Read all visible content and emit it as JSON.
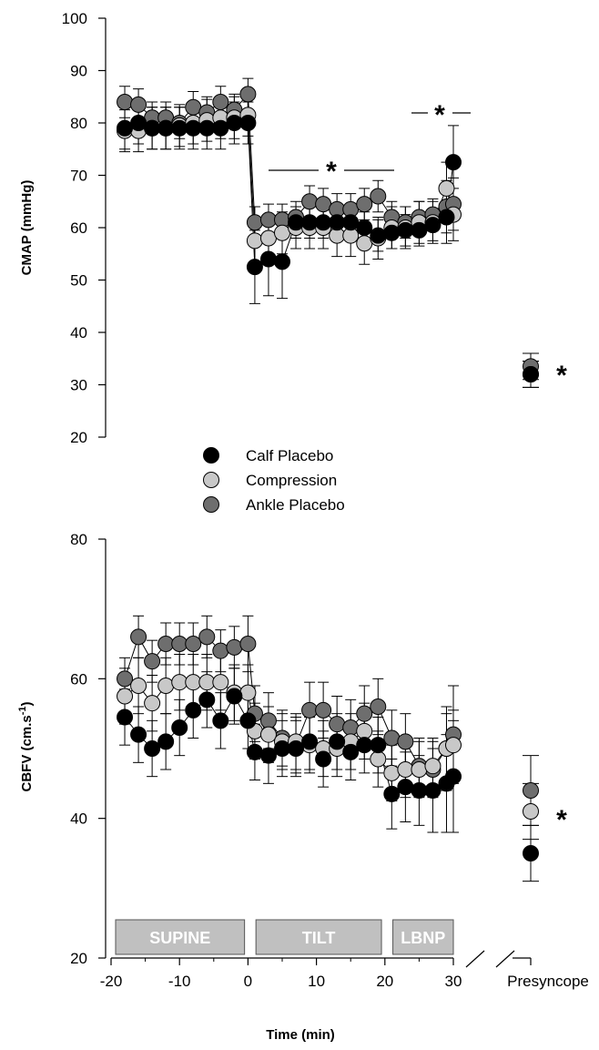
{
  "colors": {
    "calf_placebo": "#000000",
    "compression": "#c8c8c8",
    "ankle_placebo": "#6e6e6e",
    "phase_box": "#c0c0c0"
  },
  "legend": {
    "items": [
      {
        "label": "Calf Placebo",
        "color": "#000000"
      },
      {
        "label": "Compression",
        "color": "#c8c8c8"
      },
      {
        "label": "Ankle Placebo",
        "color": "#6e6e6e"
      }
    ]
  },
  "phases": [
    {
      "label": "SUPINE",
      "start": -20,
      "end": -0.5
    },
    {
      "label": "TILT",
      "start": 0.5,
      "end": 19.5
    },
    {
      "label": "LBNP",
      "start": 20.5,
      "end": 30
    }
  ],
  "x_axis": {
    "label": "Time (min)",
    "ticks": [
      "-20",
      "-10",
      "0",
      "10",
      "20",
      "30"
    ],
    "presyncope_label": "Presyncope"
  },
  "chart_data": [
    {
      "type": "scatter",
      "ylabel": "CMAP (mmHg)",
      "ylim": [
        20,
        100
      ],
      "yticks": [
        "20",
        "30",
        "40",
        "50",
        "60",
        "70",
        "80",
        "90",
        "100"
      ],
      "x": [
        -18,
        -16,
        -14,
        -12,
        -10,
        -8,
        -6,
        -4,
        -2,
        0,
        1,
        3,
        5,
        7,
        9,
        11,
        13,
        15,
        17,
        19,
        21,
        23,
        25,
        27,
        29,
        30
      ],
      "annotations": [
        "*",
        "*",
        "*"
      ],
      "series": [
        {
          "name": "Calf Placebo",
          "color": "#000000",
          "values": [
            79,
            80,
            79,
            79,
            79,
            79,
            79,
            79,
            80,
            80,
            52.5,
            54,
            53.5,
            61,
            61,
            61,
            61,
            61,
            60,
            58.5,
            59,
            59.5,
            59.5,
            60.5,
            62,
            72.5
          ],
          "errors": [
            4,
            4,
            4,
            4,
            4,
            4,
            4,
            4,
            4,
            4,
            7,
            7,
            7,
            3,
            3,
            3,
            3,
            3,
            3,
            3,
            3,
            3,
            3,
            3,
            5,
            7
          ],
          "presyncope": {
            "value": 32,
            "error": 2.5
          }
        },
        {
          "name": "Compression",
          "color": "#c8c8c8",
          "values": [
            78.5,
            78.5,
            79,
            79,
            79.5,
            80,
            80.5,
            81,
            81,
            81.5,
            57.5,
            58,
            59,
            60,
            60,
            60,
            58.5,
            58.5,
            57,
            58,
            60,
            60,
            61,
            61,
            67.5,
            62.5
          ],
          "errors": [
            4,
            4,
            4,
            4,
            4,
            4,
            4,
            4,
            4,
            4,
            4,
            4,
            4,
            4,
            4,
            4,
            4,
            4,
            4,
            4,
            4,
            4,
            4,
            4,
            5,
            5
          ],
          "presyncope": {
            "value": 32,
            "error": 2.5
          }
        },
        {
          "name": "Ankle Placebo",
          "color": "#6e6e6e",
          "values": [
            84,
            83.5,
            81,
            81,
            80,
            83,
            82,
            84,
            82.5,
            85.5,
            61,
            61.5,
            61.5,
            62,
            65,
            64.5,
            63.5,
            63.5,
            64.5,
            66,
            62,
            61,
            62,
            62.5,
            64,
            64.5
          ],
          "errors": [
            3,
            3,
            3,
            3,
            3,
            3,
            3,
            3,
            3,
            3,
            3,
            3,
            3,
            3,
            3,
            3,
            3,
            3,
            3,
            3,
            3,
            3,
            3,
            3,
            5,
            5
          ],
          "presyncope": {
            "value": 33.5,
            "error": 2.5
          }
        }
      ]
    },
    {
      "type": "scatter",
      "ylabel": "CBFV (cm.s-1)",
      "ylim": [
        20,
        80
      ],
      "yticks": [
        "20",
        "40",
        "60",
        "80"
      ],
      "x": [
        -18,
        -16,
        -14,
        -12,
        -10,
        -8,
        -6,
        -4,
        -2,
        0,
        1,
        3,
        5,
        7,
        9,
        11,
        13,
        15,
        17,
        19,
        21,
        23,
        25,
        27,
        29,
        30
      ],
      "annotations": [
        "*"
      ],
      "series": [
        {
          "name": "Calf Placebo",
          "color": "#000000",
          "values": [
            54.5,
            52,
            50,
            51,
            53,
            55.5,
            57,
            54,
            57.5,
            54,
            49.5,
            49,
            50,
            50,
            51,
            48.5,
            51,
            49.5,
            50.5,
            50.5,
            43.5,
            44.5,
            44,
            44,
            45,
            46
          ],
          "errors": [
            4,
            4,
            4,
            4,
            4,
            4,
            4,
            4,
            4,
            4,
            4,
            4,
            4,
            4,
            4,
            4,
            4,
            4,
            4,
            4,
            5,
            5,
            5,
            6,
            7,
            8
          ],
          "presyncope": {
            "value": 35,
            "error": 4
          }
        },
        {
          "name": "Compression",
          "color": "#c8c8c8",
          "values": [
            57.5,
            59,
            56.5,
            59,
            59.5,
            59.5,
            59.5,
            59.5,
            58,
            58,
            52.5,
            52,
            51,
            51,
            50.5,
            50,
            50,
            51,
            52.5,
            48.5,
            46.5,
            47,
            47,
            47.5,
            50,
            50.5
          ],
          "errors": [
            4,
            4,
            4,
            4,
            4,
            4,
            4,
            4,
            4,
            4,
            4,
            4,
            4,
            4,
            4,
            4,
            4,
            4,
            4,
            4,
            4,
            4,
            4,
            4,
            5,
            5
          ],
          "presyncope": {
            "value": 41,
            "error": 4
          }
        },
        {
          "name": "Ankle Placebo",
          "color": "#6e6e6e",
          "values": [
            60,
            66,
            62.5,
            65,
            65,
            65,
            66,
            64,
            64.5,
            65,
            55,
            54,
            51.5,
            50.5,
            55.5,
            55.5,
            53.5,
            53,
            55,
            56,
            51.5,
            51,
            47.5,
            47,
            50,
            52
          ],
          "errors": [
            3,
            3,
            3,
            3,
            3,
            3,
            3,
            3,
            3,
            4,
            4,
            4,
            4,
            4,
            4,
            4,
            4,
            4,
            4,
            4,
            4,
            4,
            4,
            4,
            6,
            7
          ],
          "presyncope": {
            "value": 44,
            "error": 5
          }
        }
      ]
    }
  ]
}
